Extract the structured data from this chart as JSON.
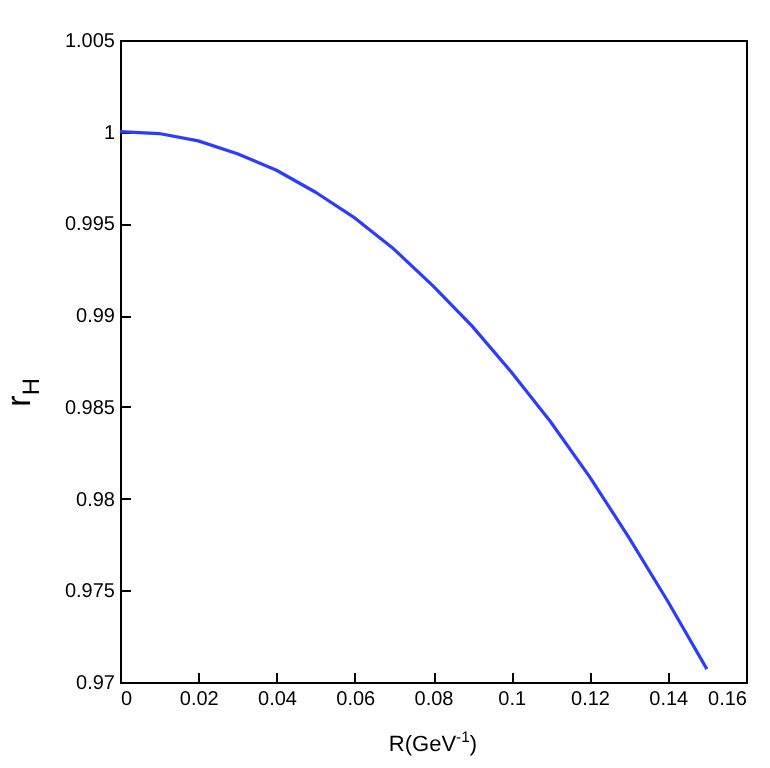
{
  "chart_data": {
    "type": "line",
    "xlabel": "R(GeV$^{-1}$)",
    "ylabel": "r$_{H}$",
    "x": [
      0,
      0.01,
      0.02,
      0.03,
      0.04,
      0.05,
      0.06,
      0.07,
      0.08,
      0.09,
      0.1,
      0.11,
      0.12,
      0.13,
      0.14,
      0.15
    ],
    "series": [
      {
        "color": "#2b3cff",
        "values": [
          1,
          0.9999,
          0.9995,
          0.9988,
          0.9979,
          0.9967,
          0.9953,
          0.9936,
          0.9916,
          0.9894,
          0.9869,
          0.9842,
          0.9812,
          0.9779,
          0.9744,
          0.9707
        ]
      }
    ],
    "xlim": [
      0,
      0.16
    ],
    "xticks": [
      0,
      0.02,
      0.04,
      0.06,
      0.08,
      0.1,
      0.12,
      0.14,
      0.16
    ],
    "ylim": [
      0.97,
      1.005
    ],
    "yticks": [
      0.97,
      0.975,
      0.98,
      0.985,
      0.99,
      0.995,
      1,
      1.005
    ],
    "grid": false,
    "legend": false,
    "line_style": "solid"
  }
}
